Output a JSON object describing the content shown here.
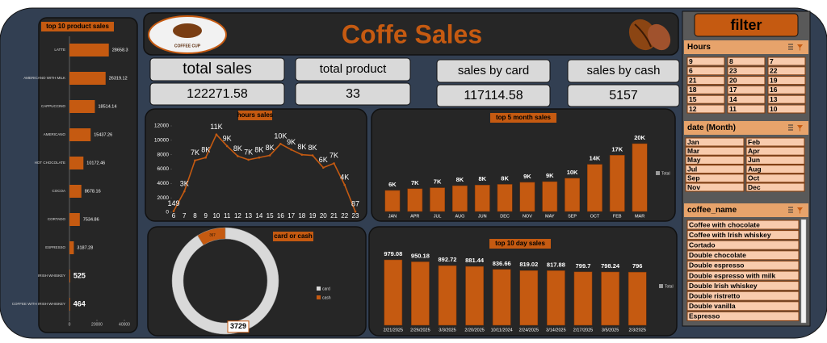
{
  "header": {
    "title": "Coffe Sales",
    "logo_text": "COFFEE CUP"
  },
  "kpis": [
    {
      "label": "total sales",
      "value": 122271.58
    },
    {
      "label": "total product",
      "value": 33
    },
    {
      "label": "sales by card",
      "value": 117114.58
    },
    {
      "label": "sales by cash",
      "value": 5157
    }
  ],
  "chart_data": [
    {
      "type": "hbar",
      "title": "top 10 product sales",
      "categories": [
        "LATTE",
        "AMERICANO WITH MILK",
        "CAPPUCCINO",
        "AMERICANO",
        "HOT CHOCOLATE",
        "COCOA",
        "CORTADO",
        "ESPRESSO",
        "IRISH WHISKEY",
        "COFFEE WITH IRISH WHISKEY"
      ],
      "values": [
        28658.3,
        26319.12,
        18514.14,
        15437.26,
        10172.46,
        8678.16,
        7534.86,
        3187.28,
        525,
        464
      ],
      "color": "#c55a11",
      "xlim": [
        0,
        40000
      ],
      "xticks": [
        0,
        20000,
        40000
      ]
    },
    {
      "type": "line",
      "title": "hours sales",
      "x": [
        6,
        7,
        8,
        9,
        10,
        11,
        12,
        13,
        14,
        15,
        16,
        17,
        18,
        19,
        20,
        21,
        22,
        23
      ],
      "xlim": [
        6,
        23
      ],
      "values": [
        149,
        2900,
        7200,
        7600,
        10800,
        9200,
        7800,
        7300,
        7600,
        7900,
        9500,
        8700,
        8000,
        7900,
        6200,
        6800,
        3800,
        87
      ],
      "value_labels": [
        "149",
        "3K",
        "7K",
        "8K",
        "11K",
        "9K",
        "8K",
        "7K",
        "8K",
        "8K",
        "10K",
        "9K",
        "8K",
        "8K",
        "6K",
        "7K",
        "4K",
        "87"
      ],
      "color": "#c55a11",
      "ylim": [
        0,
        12000
      ],
      "yticks": [
        0,
        2000,
        4000,
        6000,
        8000,
        10000,
        12000
      ]
    },
    {
      "type": "bar",
      "title": "top 5 month sales",
      "categories": [
        "JAN",
        "APR",
        "JUL",
        "AUG",
        "JUN",
        "DEC",
        "NOV",
        "MAY",
        "SEP",
        "OCT",
        "FEB",
        "MAR"
      ],
      "series": [
        {
          "name": "Total",
          "color": "#c55a11",
          "values": [
            6200,
            6700,
            7000,
            7600,
            7800,
            8000,
            8600,
            8800,
            9800,
            13900,
            16600,
            20000
          ],
          "value_labels": [
            "6K",
            "7K",
            "7K",
            "8K",
            "8K",
            "8K",
            "9K",
            "9K",
            "10K",
            "14K",
            "17K",
            "20K"
          ]
        }
      ]
    },
    {
      "type": "donut",
      "title": "card or cash",
      "categories": [
        "card",
        "cash"
      ],
      "values": [
        3729,
        357
      ],
      "colors": [
        "#d9d9d9",
        "#c55a11"
      ]
    },
    {
      "type": "bar",
      "title": "top 10 day sales",
      "categories": [
        "2/21/2025",
        "2/26/2025",
        "3/3/2025",
        "2/20/2025",
        "10/11/2024",
        "2/24/2025",
        "3/14/2025",
        "2/17/2025",
        "3/5/2025",
        "2/3/2025"
      ],
      "series": [
        {
          "name": "Total",
          "color": "#c55a11",
          "values": [
            979.08,
            950.18,
            892.72,
            881.44,
            836.66,
            819.02,
            817.88,
            799.7,
            798.24,
            796
          ]
        }
      ]
    }
  ],
  "filter": {
    "title": "filter",
    "slicers": [
      {
        "title": "Hours",
        "items": [
          9,
          8,
          7,
          6,
          23,
          22,
          21,
          20,
          19,
          18,
          17,
          16,
          15,
          14,
          13,
          12,
          11,
          10
        ]
      },
      {
        "title": "date (Month)",
        "items": [
          "Jan",
          "Feb",
          "Mar",
          "Apr",
          "May",
          "Jun",
          "Jul",
          "Aug",
          "Sep",
          "Oct",
          "Nov",
          "Dec"
        ]
      },
      {
        "title": "coffee_name",
        "items": [
          "Coffee with chocolate",
          "Coffee with Irish whiskey",
          "Cortado",
          "Double chocolate",
          "Double espresso",
          "Double espresso with milk",
          "Double Irish whiskey",
          "Double ristretto",
          "Double vanilla",
          "Espresso"
        ]
      }
    ]
  }
}
